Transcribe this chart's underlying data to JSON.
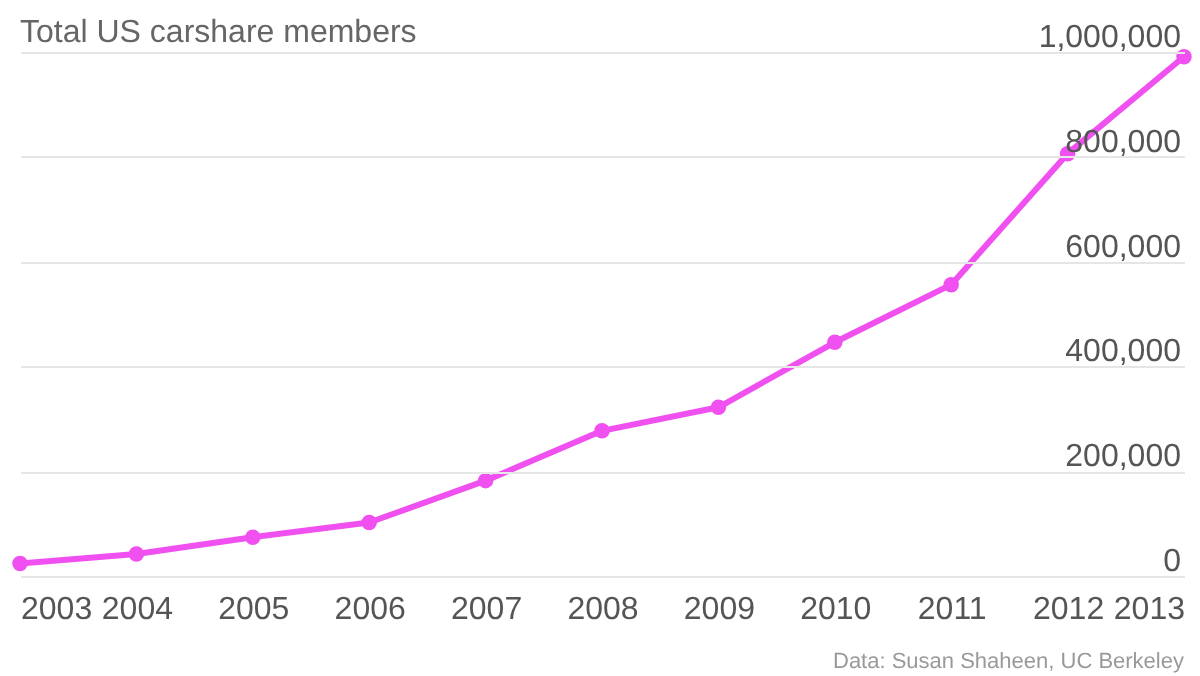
{
  "chart_data": {
    "type": "line",
    "title": "Total US carshare members",
    "x": [
      2003,
      2004,
      2005,
      2006,
      2007,
      2008,
      2009,
      2010,
      2011,
      2012,
      2013
    ],
    "series": [
      {
        "color": "#f050f0",
        "values": [
          24000,
          42000,
          74000,
          102000,
          182000,
          277000,
          322000,
          446000,
          556000,
          806000,
          991000
        ]
      }
    ],
    "xlim": [
      2003,
      2013
    ],
    "xticks": [
      2003,
      2004,
      2005,
      2006,
      2007,
      2008,
      2009,
      2010,
      2011,
      2012,
      2013
    ],
    "ylim": [
      0,
      1000000
    ],
    "yticks": [
      0,
      {
        "value": 200000,
        "label": "200,000"
      },
      {
        "value": 400000,
        "label": "400,000"
      },
      {
        "value": 600000,
        "label": "600,000"
      },
      {
        "value": 800000,
        "label": "800,000"
      },
      {
        "value": 1000000,
        "label": "1,000,000"
      }
    ],
    "grid": "y",
    "marker": "circle",
    "line_style": "solid",
    "annotations": [
      "Data: Susan Shaheen, UC Berkeley"
    ]
  }
}
